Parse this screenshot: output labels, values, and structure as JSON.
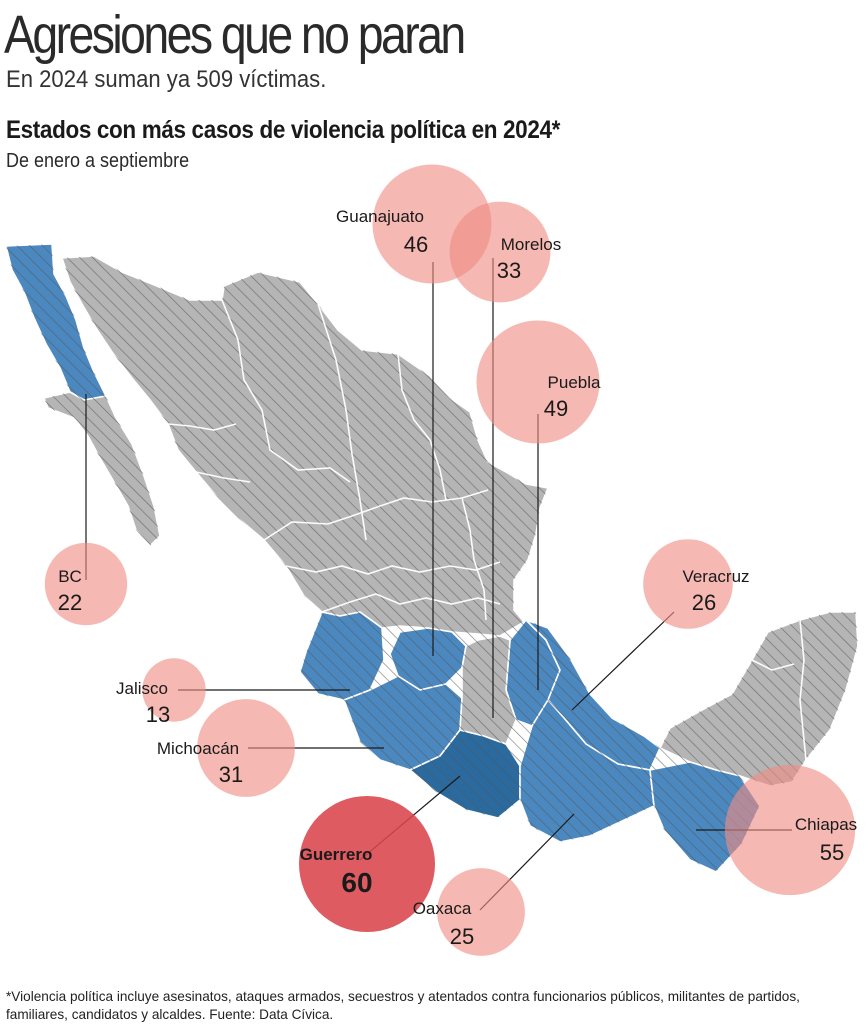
{
  "header": {
    "headline": "Agresiones que no paran",
    "deck": "En 2024 suman ya 509 víctimas."
  },
  "chart_data": {
    "type": "proportional-symbol map",
    "title": "Estados con más casos de violencia política en 2024*",
    "subtitle": "De enero a septiembre",
    "unit": "víctimas",
    "series": [
      {
        "name": "Guanajuato",
        "value": 46
      },
      {
        "name": "Morelos",
        "value": 33
      },
      {
        "name": "Puebla",
        "value": 49
      },
      {
        "name": "BC",
        "value": 22
      },
      {
        "name": "Veracruz",
        "value": 26
      },
      {
        "name": "Jalisco",
        "value": 13
      },
      {
        "name": "Michoacán",
        "value": 31
      },
      {
        "name": "Guerrero",
        "value": 60
      },
      {
        "name": "Oaxaca",
        "value": 25
      },
      {
        "name": "Chiapas",
        "value": 55
      }
    ],
    "highlight": "Guerrero"
  },
  "colors": {
    "bubble": "#ef8d84",
    "bubble_highlight": "#d9454b",
    "state_highlight": "#4b88bf",
    "state_highlight_dark": "#2a6a9e",
    "state_other": "#b5b5b5",
    "hatch": "#5a5a5a",
    "border": "#ffffff"
  },
  "footnote": "*Violencia política incluye asesinatos, ataques armados, secuestros y atentados contra funcionarios públicos, militantes de partidos, familiares, candidatos y alcaldes. Fuente: Data Cívica."
}
